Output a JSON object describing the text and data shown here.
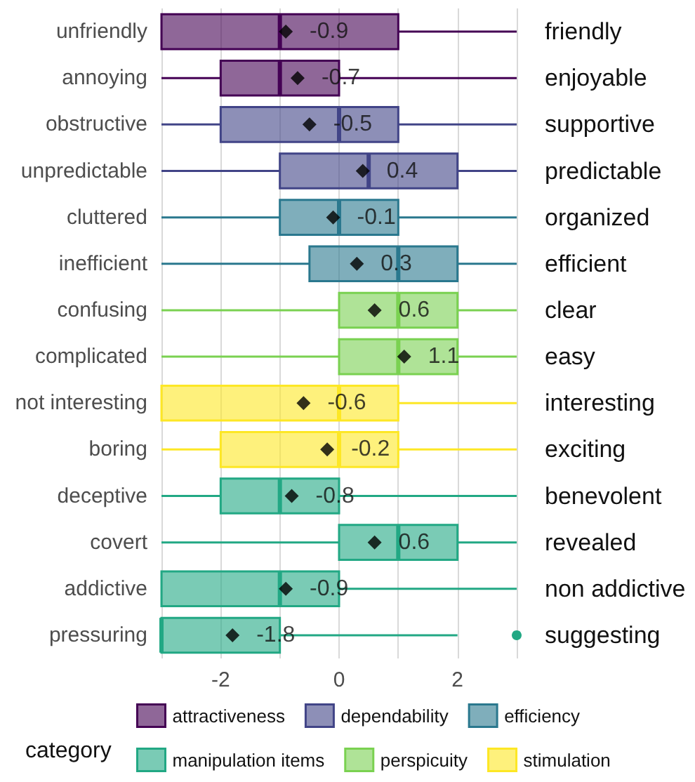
{
  "chart_data": {
    "type": "box",
    "orientation": "horizontal",
    "categories": [
      "unfriendly",
      "annoying",
      "obstructive",
      "unpredictable",
      "cluttered",
      "inefficient",
      "confusing",
      "complicated",
      "not interesting",
      "boring",
      "deceptive",
      "covert",
      "addictive",
      "pressuring"
    ],
    "y2_categories": [
      "friendly",
      "enjoyable",
      "supportive",
      "predictable",
      "organized",
      "efficient",
      "clear",
      "easy",
      "interesting",
      "exciting",
      "benevolent",
      "revealed",
      "non addictive",
      "suggesting"
    ],
    "xlim": [
      -3,
      3
    ],
    "xticks": [
      {
        "value": -3,
        "label": null
      },
      -2,
      {
        "value": -1,
        "label": null
      },
      0,
      {
        "value": 1,
        "label": null
      },
      2,
      {
        "value": 3,
        "label": null
      }
    ],
    "grid": "x",
    "legend": "bottom",
    "legend_title": "category",
    "data_labels": true,
    "series": [
      {
        "name": "attractiveness",
        "color": "#440154",
        "boxes": [
          {
            "low": -3,
            "q1": -3,
            "median": -1,
            "q3": 1,
            "high": 3
          },
          {
            "low": -3,
            "q1": -2,
            "median": -1,
            "q3": 0,
            "high": 3
          },
          null,
          null,
          null,
          null,
          null,
          null,
          null,
          null,
          null,
          null,
          null,
          null
        ]
      },
      {
        "name": "dependability",
        "color": "#414487",
        "boxes": [
          null,
          null,
          {
            "low": -3,
            "q1": -2,
            "median": 0,
            "q3": 1,
            "high": 3
          },
          {
            "low": -3,
            "q1": -1,
            "median": 0.5,
            "q3": 2,
            "high": 3
          },
          null,
          null,
          null,
          null,
          null,
          null,
          null,
          null,
          null,
          null
        ]
      },
      {
        "name": "efficiency",
        "color": "#2a788e",
        "boxes": [
          null,
          null,
          null,
          null,
          {
            "low": -3,
            "q1": -1,
            "median": 0,
            "q3": 1,
            "high": 3
          },
          {
            "low": -3,
            "q1": -0.5,
            "median": 1,
            "q3": 2,
            "high": 3
          },
          null,
          null,
          null,
          null,
          null,
          null,
          null,
          null
        ]
      },
      {
        "name": "manipulation items",
        "color": "#22a884",
        "boxes": [
          null,
          null,
          null,
          null,
          null,
          null,
          null,
          null,
          null,
          null,
          {
            "low": -3,
            "q1": -2,
            "median": -1,
            "q3": 0,
            "high": 3
          },
          {
            "low": -3,
            "q1": 0,
            "median": 1,
            "q3": 2,
            "high": 3
          },
          {
            "low": -3,
            "q1": -3,
            "median": -1,
            "q3": 0,
            "high": 3
          },
          {
            "low": -3,
            "q1": -3,
            "median": -3,
            "q3": -1,
            "high": 2,
            "outliers": [
              3
            ]
          }
        ]
      },
      {
        "name": "perspicuity",
        "color": "#7ad151",
        "boxes": [
          null,
          null,
          null,
          null,
          null,
          null,
          {
            "low": -3,
            "q1": 0,
            "median": 1,
            "q3": 2,
            "high": 3
          },
          {
            "low": -3,
            "q1": 0,
            "median": 1,
            "q3": 2,
            "high": 3
          },
          null,
          null,
          null,
          null,
          null,
          null
        ]
      },
      {
        "name": "stimulation",
        "color": "#fde725",
        "boxes": [
          null,
          null,
          null,
          null,
          null,
          null,
          null,
          null,
          {
            "low": -3,
            "q1": -3,
            "median": 0,
            "q3": 1,
            "high": 3
          },
          {
            "low": -3,
            "q1": -2,
            "median": 0,
            "q3": 1,
            "high": 3
          },
          null,
          null,
          null,
          null
        ]
      },
      {
        "type": "scatter",
        "marker": "diamond",
        "color": "#000000",
        "x": [
          "unfriendly",
          "annoying",
          "obstructive",
          "unpredictable",
          "cluttered",
          "inefficient",
          "confusing",
          "complicated",
          "not interesting",
          "boring",
          "deceptive",
          "covert",
          "addictive",
          "pressuring"
        ],
        "values": [
          -0.9,
          -0.7,
          -0.5,
          0.4,
          -0.1,
          0.3,
          0.6,
          1.1,
          -0.6,
          -0.2,
          -0.8,
          0.6,
          -0.9,
          -1.8
        ]
      }
    ]
  }
}
